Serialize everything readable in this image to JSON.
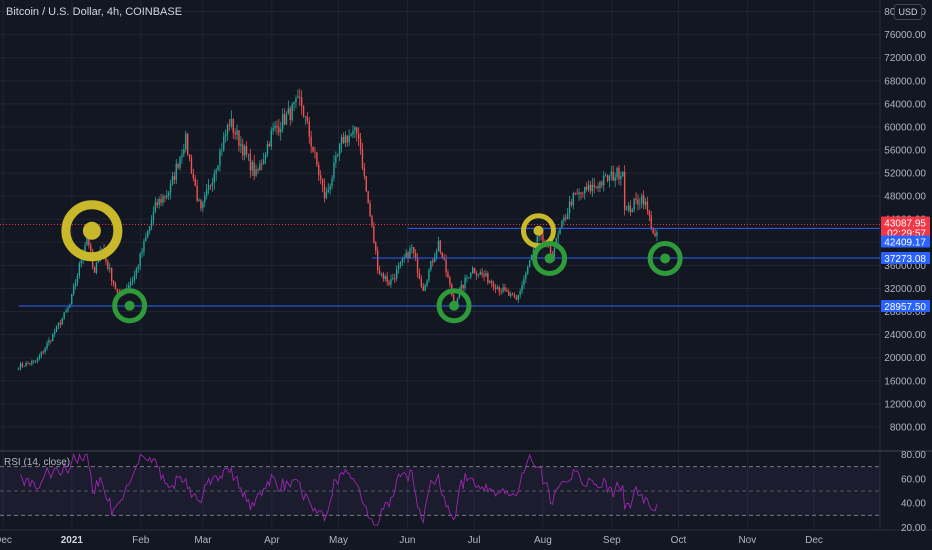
{
  "header": {
    "symbol_title": "Bitcoin / U.S. Dollar, 4h, COINBASE",
    "currency_button": "USD"
  },
  "chart_data": {
    "type": "candlestick",
    "title": "Bitcoin / U.S. Dollar, 4h, COINBASE",
    "x_ticks": [
      "Dec",
      "2021",
      "Feb",
      "Mar",
      "Apr",
      "May",
      "Jun",
      "Jul",
      "Aug",
      "Sep",
      "Oct",
      "Nov",
      "Dec"
    ],
    "y_ticks": [
      "80000.00",
      "76000.00",
      "72000.00",
      "68000.00",
      "64000.00",
      "60000.00",
      "56000.00",
      "52000.00",
      "48000.00",
      "44000.00",
      "40000.00",
      "36000.00",
      "32000.00",
      "28000.00",
      "24000.00",
      "20000.00",
      "16000.00",
      "12000.00",
      "8000.00"
    ],
    "y_tick_values": [
      80000,
      76000,
      72000,
      68000,
      64000,
      60000,
      56000,
      52000,
      48000,
      44000,
      40000,
      36000,
      32000,
      28000,
      24000,
      20000,
      16000,
      12000,
      8000
    ],
    "ylim": [
      4000,
      82000
    ],
    "last_price": {
      "value": "43087.95",
      "countdown": "02:29:57",
      "color": "#f23645"
    },
    "levels": [
      {
        "label": "42409.17",
        "value": 42409.17,
        "color": "#2962ff"
      },
      {
        "label": "37273.08",
        "value": 37273.08,
        "color": "#2962ff"
      },
      {
        "label": "28957.50",
        "value": 28957.5,
        "color": "#2962ff"
      }
    ],
    "price_path": [
      [
        "2020-12-08",
        18500
      ],
      [
        "2020-12-16",
        19400
      ],
      [
        "2020-12-22",
        23000
      ],
      [
        "2020-12-31",
        29000
      ],
      [
        "2021-01-08",
        41500
      ],
      [
        "2021-01-11",
        34000
      ],
      [
        "2021-01-14",
        39500
      ],
      [
        "2021-01-22",
        30500
      ],
      [
        "2021-01-29",
        34000
      ],
      [
        "2021-02-08",
        46500
      ],
      [
        "2021-02-14",
        49000
      ],
      [
        "2021-02-21",
        58000
      ],
      [
        "2021-02-28",
        45000
      ],
      [
        "2021-03-13",
        61000
      ],
      [
        "2021-03-25",
        51500
      ],
      [
        "2021-04-01",
        59000
      ],
      [
        "2021-04-14",
        64500
      ],
      [
        "2021-04-25",
        47500
      ],
      [
        "2021-05-03",
        58000
      ],
      [
        "2021-05-10",
        59000
      ],
      [
        "2021-05-13",
        50000
      ],
      [
        "2021-05-19",
        35000
      ],
      [
        "2021-05-24",
        33000
      ],
      [
        "2021-06-03",
        39000
      ],
      [
        "2021-06-08",
        32000
      ],
      [
        "2021-06-15",
        40000
      ],
      [
        "2021-06-22",
        29500
      ],
      [
        "2021-06-30",
        35500
      ],
      [
        "2021-07-06",
        34000
      ],
      [
        "2021-07-20",
        29800
      ],
      [
        "2021-07-30",
        41000
      ],
      [
        "2021-08-05",
        38000
      ],
      [
        "2021-08-14",
        47500
      ],
      [
        "2021-08-23",
        49500
      ],
      [
        "2021-09-06",
        52500
      ],
      [
        "2021-09-07",
        45000
      ],
      [
        "2021-09-12",
        47000
      ],
      [
        "2021-09-15",
        48000
      ],
      [
        "2021-09-21",
        40000
      ],
      [
        "2021-09-22",
        43088
      ]
    ],
    "circles": [
      {
        "color": "yellow",
        "date": "2021-01-10",
        "price": 42000,
        "size": "large"
      },
      {
        "color": "green",
        "date": "2021-01-27",
        "price": 29000,
        "size": "medium"
      },
      {
        "color": "green",
        "date": "2021-06-22",
        "price": 29000,
        "size": "medium"
      },
      {
        "color": "yellow",
        "date": "2021-07-30",
        "price": 42000,
        "size": "medium"
      },
      {
        "color": "green",
        "date": "2021-08-04",
        "price": 37200,
        "size": "medium"
      },
      {
        "color": "green",
        "date": "2021-09-25",
        "price": 37200,
        "size": "medium"
      }
    ],
    "indicator": {
      "label": "RSI (14, close)",
      "ylim": [
        18,
        82
      ],
      "y_ticks": [
        "80.00",
        "60.00",
        "40.00",
        "20.00"
      ],
      "y_tick_values": [
        80,
        60,
        40,
        20
      ],
      "band_upper": 70,
      "band_lower": 30
    },
    "colors": {
      "up": "#26a69a",
      "down": "#ef5350",
      "rsi": "#9c27b0",
      "level": "#2962ff",
      "yellow_circle": "#c9b92a",
      "green_circle": "#2e9a3a"
    }
  }
}
